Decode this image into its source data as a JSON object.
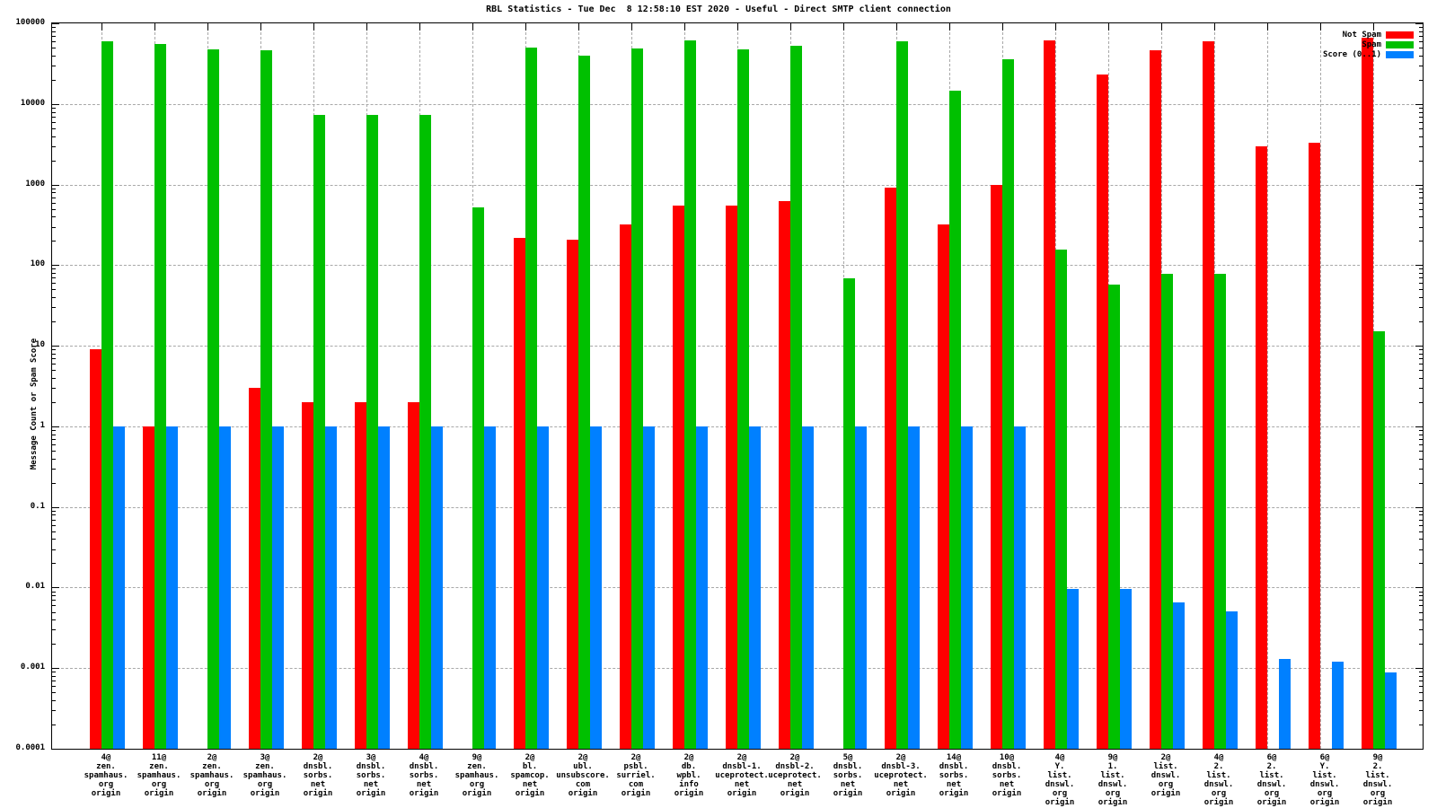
{
  "window": {
    "kind": "chart-image"
  },
  "chart_data": {
    "type": "bar",
    "title": "RBL Statistics - Tue Dec  8 12:58:10 EST 2020 - Useful - Direct SMTP client connection",
    "xlabel": "",
    "ylabel": "Message Count or Spam Score",
    "yscale": "log10",
    "ylim": [
      0.0001,
      100000
    ],
    "grid": true,
    "legend_position": "top-right-inside",
    "ytick_labels": [
      "100000",
      "10000",
      "1000",
      "100",
      "10",
      "1",
      "0.1",
      "0.01",
      "0.001",
      "0.0001"
    ],
    "categories": [
      [
        "4@",
        "zen.",
        "spamhaus.",
        "org",
        "origin"
      ],
      [
        "11@",
        "zen.",
        "spamhaus.",
        "org",
        "origin"
      ],
      [
        "2@",
        "zen.",
        "spamhaus.",
        "org",
        "origin"
      ],
      [
        "3@",
        "zen.",
        "spamhaus.",
        "org",
        "origin"
      ],
      [
        "2@",
        "dnsbl.",
        "sorbs.",
        "net",
        "origin"
      ],
      [
        "3@",
        "dnsbl.",
        "sorbs.",
        "net",
        "origin"
      ],
      [
        "4@",
        "dnsbl.",
        "sorbs.",
        "net",
        "origin"
      ],
      [
        "9@",
        "zen.",
        "spamhaus.",
        "org",
        "origin"
      ],
      [
        "2@",
        "bl.",
        "spamcop.",
        "net",
        "origin"
      ],
      [
        "2@",
        "ubl.",
        "unsubscore.",
        "com",
        "origin"
      ],
      [
        "2@",
        "psbl.",
        "surriel.",
        "com",
        "origin"
      ],
      [
        "2@",
        "db.",
        "wpbl.",
        "info",
        "origin"
      ],
      [
        "2@",
        "dnsbl-1.",
        "uceprotect.",
        "net",
        "origin"
      ],
      [
        "2@",
        "dnsbl-2.",
        "uceprotect.",
        "net",
        "origin"
      ],
      [
        "5@",
        "dnsbl.",
        "sorbs.",
        "net",
        "origin"
      ],
      [
        "2@",
        "dnsbl-3.",
        "uceprotect.",
        "net",
        "origin"
      ],
      [
        "14@",
        "dnsbl.",
        "sorbs.",
        "net",
        "origin"
      ],
      [
        "10@",
        "dnsbl.",
        "sorbs.",
        "net",
        "origin"
      ],
      [
        "4@",
        "Y.",
        "list.",
        "dnswl.",
        "org",
        "origin"
      ],
      [
        "9@",
        "1.",
        "list.",
        "dnswl.",
        "org",
        "origin"
      ],
      [
        "2@",
        "list.",
        "dnswl.",
        "org",
        "origin"
      ],
      [
        "4@",
        "2.",
        "list.",
        "dnswl.",
        "org",
        "origin"
      ],
      [
        "6@",
        "2.",
        "list.",
        "dnswl.",
        "org",
        "origin"
      ],
      [
        "6@",
        "Y.",
        "list.",
        "dnswl.",
        "org",
        "origin"
      ],
      [
        "9@",
        "2.",
        "list.",
        "dnswl.",
        "org",
        "origin"
      ]
    ],
    "series": [
      {
        "name": "Not Spam",
        "color": "#ff0000",
        "values": [
          9,
          1,
          null,
          3,
          2,
          2,
          2,
          null,
          220,
          205,
          320,
          550,
          550,
          620,
          null,
          910,
          320,
          980,
          62000,
          23000,
          46000,
          60000,
          3000,
          3300,
          67000
        ]
      },
      {
        "name": "Spam",
        "color": "#00c000",
        "values": [
          60000,
          55000,
          47000,
          46000,
          7400,
          7400,
          7400,
          520,
          50000,
          40000,
          49000,
          62000,
          47000,
          53000,
          68,
          60000,
          14500,
          36000,
          155,
          57,
          78,
          78,
          null,
          null,
          15
        ]
      },
      {
        "name": "Score (0..1)",
        "color": "#0080ff",
        "values": [
          1,
          1,
          1,
          1,
          1,
          1,
          1,
          1,
          1,
          1,
          1,
          1,
          1,
          1,
          1,
          1,
          1,
          1,
          0.0097,
          0.0097,
          0.0066,
          0.0051,
          0.0013,
          0.0012,
          0.00088
        ]
      }
    ]
  }
}
